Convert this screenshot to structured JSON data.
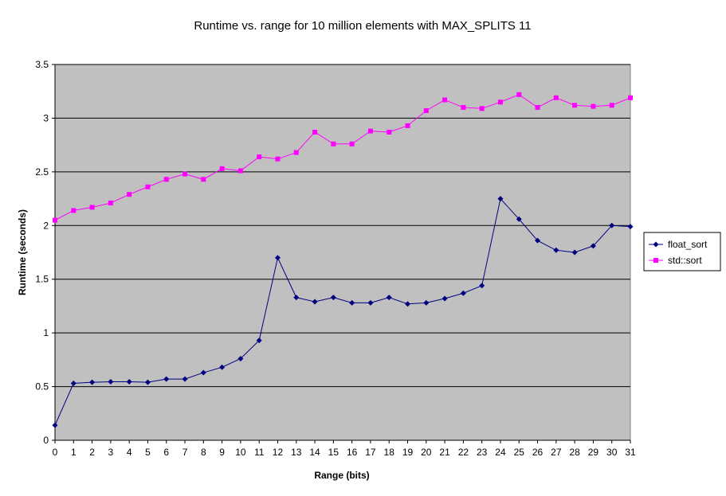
{
  "chart_data": {
    "type": "line",
    "title": "Runtime vs. range for 10 million elements with MAX_SPLITS 11",
    "xlabel": "Range (bits)",
    "ylabel": "Runtime (seconds)",
    "x": [
      0,
      1,
      2,
      3,
      4,
      5,
      6,
      7,
      8,
      9,
      10,
      11,
      12,
      13,
      14,
      15,
      16,
      17,
      18,
      19,
      20,
      21,
      22,
      23,
      24,
      25,
      26,
      27,
      28,
      29,
      30,
      31
    ],
    "ylim": [
      0,
      3.5
    ],
    "yticks": [
      "0",
      "0.5",
      "1",
      "1.5",
      "2",
      "2.5",
      "3",
      "3.5"
    ],
    "ytick_values": [
      0,
      0.5,
      1,
      1.5,
      2,
      2.5,
      3,
      3.5
    ],
    "grid": true,
    "plot_background": "#c0c0c0",
    "legend_position": "right",
    "series": [
      {
        "name": "float_sort",
        "color": "#000080",
        "marker": "diamond",
        "values": [
          0.14,
          0.53,
          0.54,
          0.545,
          0.545,
          0.54,
          0.57,
          0.57,
          0.63,
          0.68,
          0.76,
          0.93,
          1.7,
          1.33,
          1.29,
          1.33,
          1.28,
          1.28,
          1.33,
          1.27,
          1.28,
          1.32,
          1.37,
          1.44,
          2.25,
          2.06,
          1.86,
          1.77,
          1.75,
          1.81,
          2.0,
          1.99
        ]
      },
      {
        "name": "std::sort",
        "color": "#ff00ff",
        "marker": "square",
        "values": [
          2.05,
          2.14,
          2.17,
          2.21,
          2.29,
          2.36,
          2.43,
          2.48,
          2.43,
          2.53,
          2.51,
          2.64,
          2.62,
          2.68,
          2.87,
          2.76,
          2.76,
          2.88,
          2.87,
          2.93,
          3.07,
          3.17,
          3.1,
          3.09,
          3.15,
          3.22,
          3.1,
          3.19,
          3.12,
          3.11,
          3.12,
          3.19
        ]
      }
    ]
  }
}
